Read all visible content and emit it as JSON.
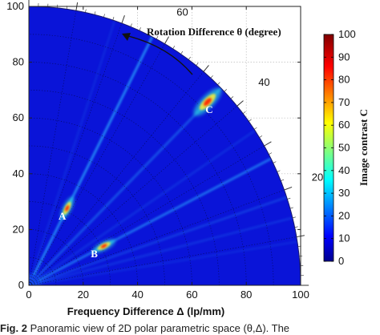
{
  "chart_data": {
    "type": "heatmap",
    "projection": "polar-quadrant",
    "xlabel": "Frequency Difference Δ (lp/mm)",
    "xlim": [
      0,
      100
    ],
    "ylim": [
      0,
      100
    ],
    "x_ticks": [
      "0",
      "20",
      "40",
      "60",
      "80",
      "100"
    ],
    "y_ticks": [
      "0",
      "20",
      "40",
      "60",
      "80",
      "100"
    ],
    "angle_axis": {
      "label": "Rotation Difference θ (degree)",
      "ticks": [
        "20",
        "40",
        "60",
        "80"
      ],
      "direction": "counter-clockwise"
    },
    "grid": true,
    "colormap": "jet",
    "colorbar": {
      "label": "Image contrast  C",
      "range": [
        0,
        100
      ],
      "ticks": [
        "0",
        "10",
        "20",
        "30",
        "40",
        "50",
        "60",
        "70",
        "80",
        "90",
        "100"
      ]
    },
    "peaks": [
      {
        "label": "A",
        "delta": 31,
        "theta": 63
      },
      {
        "label": "B",
        "delta": 31,
        "theta": 27
      },
      {
        "label": "C",
        "delta": 93,
        "theta": 45
      }
    ],
    "ridges": [
      {
        "theta": 63,
        "intensity": 0.75
      },
      {
        "theta": 27,
        "intensity": 0.6
      },
      {
        "theta": 45,
        "intensity": 0.4
      },
      {
        "theta": 18.4,
        "intensity": 0.25
      },
      {
        "theta": 14,
        "intensity": 0.18
      },
      {
        "theta": 33.7,
        "intensity": 0.16
      },
      {
        "theta": 71.6,
        "intensity": 0.12
      },
      {
        "theta": 9,
        "intensity": 0.12
      }
    ]
  },
  "caption": {
    "fig_label": "Fig. 2",
    "text": "Panoramic view of 2D polar parametric space (θ,Δ). The"
  }
}
